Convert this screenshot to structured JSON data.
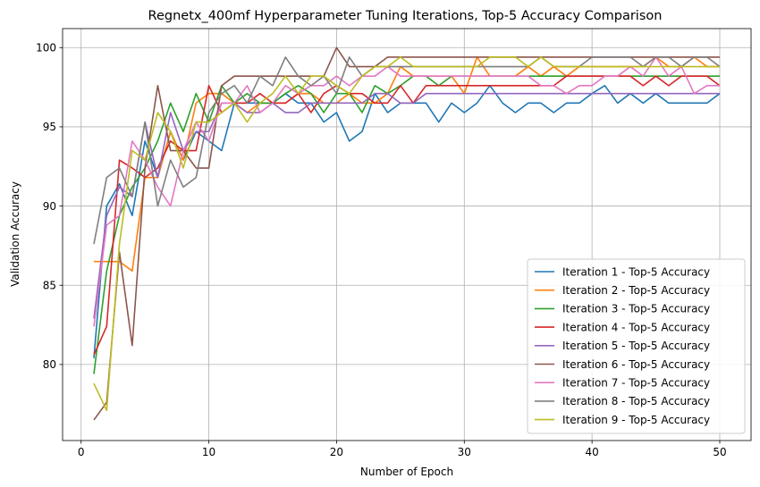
{
  "chart_data": {
    "type": "line",
    "title": "Regnetx_400mf Hyperparameter Tuning Iterations, Top-5 Accuracy Comparison",
    "xlabel": "Number of Epoch",
    "ylabel": "Validation Accuracy",
    "xlim": [
      -1.45,
      52.45
    ],
    "ylim": [
      75.2,
      101.2
    ],
    "xticks": [
      0,
      10,
      20,
      30,
      40,
      50
    ],
    "yticks": [
      80,
      85,
      90,
      95,
      100
    ],
    "grid": true,
    "legend_position": "lower-right",
    "x": [
      1,
      2,
      3,
      4,
      5,
      6,
      7,
      8,
      9,
      10,
      11,
      12,
      13,
      14,
      15,
      16,
      17,
      18,
      19,
      20,
      21,
      22,
      23,
      24,
      25,
      26,
      27,
      28,
      29,
      30,
      31,
      32,
      33,
      34,
      35,
      36,
      37,
      38,
      39,
      40,
      41,
      42,
      43,
      44,
      45,
      46,
      47,
      48,
      49,
      50
    ],
    "series": [
      {
        "name": "Iteration 1 - Top-5 Accuracy",
        "color": "#1f77b4",
        "values": [
          80.4,
          90.0,
          91.4,
          89.4,
          94.1,
          91.8,
          94.7,
          92.9,
          94.7,
          94.1,
          93.5,
          96.5,
          96.5,
          96.5,
          96.5,
          97.1,
          96.5,
          96.5,
          95.3,
          95.9,
          94.1,
          94.7,
          97.1,
          95.9,
          96.5,
          96.5,
          96.5,
          95.3,
          96.5,
          95.9,
          96.5,
          97.6,
          96.5,
          95.9,
          96.5,
          96.5,
          95.9,
          96.5,
          96.5,
          97.1,
          97.6,
          96.5,
          97.1,
          96.5,
          97.1,
          96.5,
          96.5,
          96.5,
          96.5,
          97.1
        ]
      },
      {
        "name": "Iteration 2 - Top-5 Accuracy",
        "color": "#ff7f0e",
        "values": [
          86.5,
          86.5,
          86.5,
          85.9,
          91.8,
          91.8,
          94.7,
          92.9,
          96.5,
          97.1,
          97.1,
          96.5,
          95.9,
          96.5,
          96.5,
          96.5,
          97.1,
          97.1,
          96.5,
          96.5,
          97.1,
          96.5,
          96.5,
          97.1,
          98.8,
          98.2,
          98.2,
          98.2,
          98.2,
          97.1,
          99.4,
          98.2,
          98.2,
          98.2,
          98.8,
          98.2,
          98.8,
          98.2,
          98.8,
          98.8,
          98.8,
          98.8,
          98.8,
          98.8,
          99.4,
          98.8,
          98.8,
          99.4,
          98.8,
          98.8
        ]
      },
      {
        "name": "Iteration 3 - Top-5 Accuracy",
        "color": "#2ca02c",
        "values": [
          79.4,
          85.9,
          89.4,
          91.2,
          92.4,
          94.1,
          96.5,
          94.7,
          97.1,
          95.3,
          97.6,
          96.5,
          97.1,
          96.5,
          96.5,
          97.1,
          97.6,
          97.1,
          95.9,
          97.1,
          97.1,
          95.9,
          97.6,
          97.1,
          97.6,
          98.2,
          98.2,
          97.6,
          98.2,
          98.2,
          98.2,
          98.2,
          98.2,
          98.2,
          98.2,
          98.2,
          98.2,
          98.2,
          98.2,
          98.2,
          98.2,
          98.2,
          98.2,
          98.2,
          98.2,
          98.2,
          98.2,
          98.2,
          98.2,
          98.2
        ]
      },
      {
        "name": "Iteration 4 - Top-5 Accuracy",
        "color": "#d62728",
        "values": [
          80.6,
          82.4,
          92.9,
          92.4,
          91.8,
          92.4,
          94.1,
          93.5,
          93.5,
          97.6,
          95.9,
          96.5,
          96.5,
          97.1,
          96.5,
          96.5,
          97.1,
          95.9,
          97.1,
          97.6,
          97.1,
          97.1,
          96.5,
          96.5,
          97.6,
          96.5,
          97.6,
          97.6,
          97.6,
          97.6,
          97.6,
          97.6,
          97.6,
          97.6,
          97.6,
          97.6,
          97.6,
          98.2,
          98.2,
          98.2,
          98.2,
          98.2,
          98.2,
          97.6,
          98.2,
          97.6,
          98.2,
          98.2,
          98.2,
          97.6
        ]
      },
      {
        "name": "Iteration 5 - Top-5 Accuracy",
        "color": "#9467bd",
        "values": [
          82.9,
          89.4,
          91.2,
          90.6,
          95.3,
          91.8,
          95.9,
          93.5,
          94.7,
          94.7,
          96.5,
          96.5,
          95.9,
          95.9,
          96.5,
          95.9,
          95.9,
          96.5,
          96.5,
          96.5,
          96.5,
          96.5,
          97.1,
          97.1,
          96.5,
          96.5,
          97.1,
          97.1,
          97.1,
          97.1,
          97.1,
          97.1,
          97.1,
          97.1,
          97.1,
          97.1,
          97.1,
          97.1,
          97.1,
          97.1,
          97.1,
          97.1,
          97.1,
          97.1,
          97.1,
          97.1,
          97.1,
          97.1,
          97.1,
          97.1
        ]
      },
      {
        "name": "Iteration 6 - Top-5 Accuracy",
        "color": "#8c564b",
        "values": [
          76.5,
          77.6,
          87.1,
          81.2,
          92.4,
          97.6,
          93.5,
          93.5,
          92.4,
          92.4,
          97.6,
          98.2,
          98.2,
          98.2,
          98.2,
          98.2,
          98.2,
          98.2,
          98.2,
          100.0,
          98.8,
          98.8,
          98.8,
          99.4,
          99.4,
          99.4,
          99.4,
          99.4,
          99.4,
          99.4,
          99.4,
          99.4,
          99.4,
          99.4,
          99.4,
          99.4,
          99.4,
          99.4,
          99.4,
          99.4,
          99.4,
          99.4,
          99.4,
          99.4,
          99.4,
          99.4,
          99.4,
          99.4,
          99.4,
          99.4
        ]
      },
      {
        "name": "Iteration 7 - Top-5 Accuracy",
        "color": "#e377c2",
        "values": [
          82.4,
          88.8,
          89.4,
          94.1,
          92.9,
          91.2,
          90.0,
          93.5,
          95.3,
          94.1,
          96.5,
          96.5,
          97.6,
          95.9,
          96.5,
          97.6,
          97.1,
          97.6,
          97.6,
          98.2,
          97.6,
          98.2,
          98.2,
          98.8,
          98.2,
          98.2,
          98.2,
          98.2,
          98.2,
          98.2,
          98.2,
          98.2,
          98.2,
          98.2,
          98.2,
          97.6,
          97.6,
          97.1,
          97.6,
          97.6,
          98.2,
          98.2,
          98.8,
          98.2,
          99.4,
          98.2,
          98.8,
          97.1,
          97.6,
          97.6
        ]
      },
      {
        "name": "Iteration 8 - Top-5 Accuracy",
        "color": "#7f7f7f",
        "values": [
          87.6,
          91.8,
          92.4,
          90.6,
          95.3,
          90.0,
          92.9,
          91.2,
          91.8,
          95.9,
          97.1,
          97.6,
          96.5,
          98.2,
          97.6,
          99.4,
          98.2,
          97.6,
          98.2,
          97.1,
          99.4,
          98.2,
          98.8,
          98.8,
          98.8,
          98.8,
          98.8,
          98.8,
          98.8,
          98.8,
          98.8,
          98.8,
          98.8,
          98.8,
          98.8,
          99.4,
          98.8,
          98.8,
          98.8,
          99.4,
          99.4,
          99.4,
          99.4,
          98.8,
          99.4,
          99.4,
          98.8,
          99.4,
          99.4,
          98.8
        ]
      },
      {
        "name": "Iteration 9 - Top-5 Accuracy",
        "color": "#bcbd22",
        "values": [
          78.8,
          77.1,
          87.6,
          93.5,
          92.9,
          95.9,
          94.7,
          92.4,
          95.3,
          95.3,
          95.9,
          96.5,
          95.3,
          96.5,
          97.1,
          98.2,
          97.1,
          98.2,
          98.2,
          97.6,
          97.1,
          98.2,
          98.8,
          98.8,
          99.4,
          98.8,
          98.8,
          98.8,
          98.8,
          98.8,
          98.8,
          99.4,
          99.4,
          99.4,
          98.8,
          99.4,
          98.8,
          98.8,
          98.8,
          98.8,
          98.8,
          98.8,
          98.8,
          98.8,
          98.8,
          98.8,
          98.8,
          98.8,
          98.8,
          98.8
        ]
      }
    ]
  }
}
